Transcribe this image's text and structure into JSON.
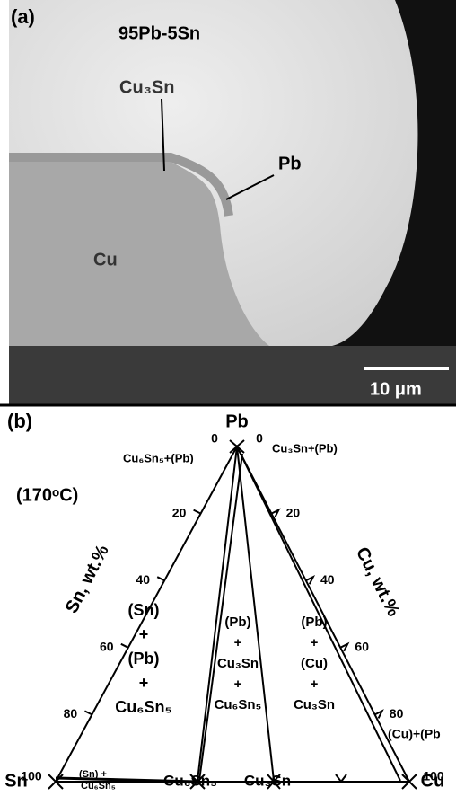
{
  "panel_a": {
    "label": "(a)",
    "title": "95Pb-5Sn",
    "annotations": [
      "Cu₃Sn",
      "Pb",
      "Cu"
    ],
    "scale_bar": "10 μm"
  },
  "panel_b": {
    "label": "(b)",
    "temperature": "(170ᵒC)",
    "apex": "Pb",
    "left_axis": {
      "title": "Sn, wt.%",
      "ticks": [
        0,
        20,
        40,
        60,
        80,
        100
      ]
    },
    "right_axis": {
      "title": "Cu, wt.%",
      "ticks": [
        0,
        20,
        40,
        60,
        80,
        100
      ]
    },
    "corners": [
      "Sn",
      "Cu₆Sn₅",
      "Cu₃Sn",
      "Cu"
    ],
    "phase_labels": [
      "Cu₆Sn₅+(Pb)",
      "Cu₃Sn+(Pb)",
      "(Cu)+(Pb",
      "(Sn) +",
      "Cu₆Sn₅"
    ],
    "regions": [
      [
        "(Sn)",
        "+",
        "(Pb)",
        "+",
        "Cu₆Sn₅"
      ],
      [
        "(Pb)",
        "+",
        "Cu₃Sn",
        "+",
        "Cu₆Sn₅"
      ],
      [
        "(Pb)",
        "+",
        "(Cu)",
        "+",
        "Cu₃Sn"
      ]
    ]
  }
}
